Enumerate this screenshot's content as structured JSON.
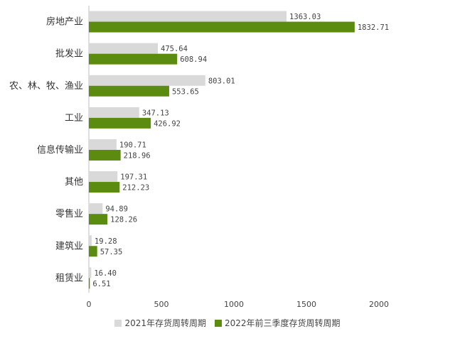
{
  "chart_data": {
    "type": "bar",
    "orientation": "horizontal",
    "categories": [
      "房地产业",
      "批发业",
      "农、林、牧、渔业",
      "工业",
      "信息传输业",
      "其他",
      "零售业",
      "建筑业",
      "租赁业"
    ],
    "series": [
      {
        "name": "2021年存货周转周期",
        "color": "#d9d9d9",
        "values": [
          1363.03,
          475.64,
          803.01,
          347.13,
          190.71,
          197.31,
          94.89,
          19.28,
          16.4
        ],
        "labels": [
          "1363.03",
          "475.64",
          "803.01",
          "347.13",
          "190.71",
          "197.31",
          "94.89",
          "19.28",
          "16.40"
        ]
      },
      {
        "name": "2022年前三季度存货周转周期",
        "color": "#5b8c0f",
        "values": [
          1832.71,
          608.94,
          553.65,
          426.92,
          218.96,
          212.23,
          128.26,
          57.35,
          6.51
        ],
        "labels": [
          "1832.71",
          "608.94",
          "553.65",
          "426.92",
          "218.96",
          "212.23",
          "128.26",
          "57.35",
          "6.51"
        ]
      }
    ],
    "x_ticks": [
      "0",
      "500",
      "1000",
      "1500",
      "2000"
    ],
    "xlim": [
      0,
      2000
    ],
    "grid": false,
    "legend_position": "bottom"
  }
}
